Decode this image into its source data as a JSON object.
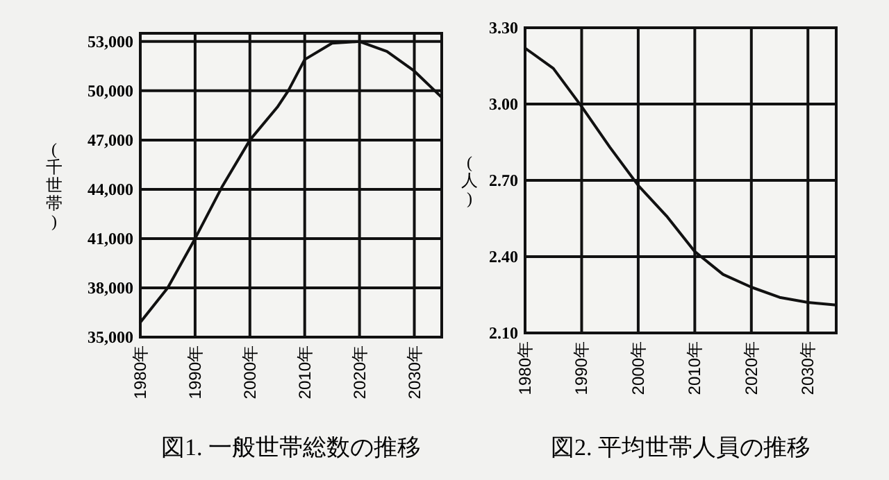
{
  "chart_data": [
    {
      "type": "line",
      "title": "図1.  一般世帯総数の推移",
      "ylabel": "(千世帯)",
      "x": [
        1980,
        1985,
        1990,
        1995,
        2000,
        2005,
        2007,
        2010,
        2015,
        2020,
        2025,
        2030,
        2035
      ],
      "values": [
        35900,
        38000,
        41000,
        44200,
        47000,
        49000,
        50000,
        51900,
        52900,
        53000,
        52400,
        51200,
        49600
      ],
      "xlim": [
        1980,
        2035
      ],
      "ylim": [
        35000,
        53500
      ],
      "xticks": [
        {
          "value": 1980,
          "label": "1980年"
        },
        {
          "value": 1990,
          "label": "1990年"
        },
        {
          "value": 2000,
          "label": "2000年"
        },
        {
          "value": 2010,
          "label": "2010年"
        },
        {
          "value": 2020,
          "label": "2020年"
        },
        {
          "value": 2030,
          "label": "2030年"
        }
      ],
      "yticks": [
        {
          "value": 35000,
          "label": "35,000"
        },
        {
          "value": 38000,
          "label": "38,000"
        },
        {
          "value": 41000,
          "label": "41,000"
        },
        {
          "value": 44000,
          "label": "44,000"
        },
        {
          "value": 47000,
          "label": "47,000"
        },
        {
          "value": 50000,
          "label": "50,000"
        },
        {
          "value": 53000,
          "label": "53,000"
        }
      ],
      "grid": true
    },
    {
      "type": "line",
      "title": "図2.  平均世帯人員の推移",
      "ylabel": "(人)",
      "x": [
        1980,
        1985,
        1990,
        1995,
        2000,
        2005,
        2010,
        2015,
        2020,
        2025,
        2030,
        2035
      ],
      "values": [
        3.22,
        3.14,
        2.99,
        2.83,
        2.68,
        2.56,
        2.42,
        2.33,
        2.28,
        2.24,
        2.22,
        2.21
      ],
      "xlim": [
        1980,
        2035
      ],
      "ylim": [
        2.1,
        3.3
      ],
      "xticks": [
        {
          "value": 1980,
          "label": "1980年"
        },
        {
          "value": 1990,
          "label": "1990年"
        },
        {
          "value": 2000,
          "label": "2000年"
        },
        {
          "value": 2010,
          "label": "2010年"
        },
        {
          "value": 2020,
          "label": "2020年"
        },
        {
          "value": 2030,
          "label": "2030年"
        }
      ],
      "yticks": [
        {
          "value": 2.1,
          "label": "2.10"
        },
        {
          "value": 2.4,
          "label": "2.40"
        },
        {
          "value": 2.7,
          "label": "2.70"
        },
        {
          "value": 3.0,
          "label": "3.00"
        },
        {
          "value": 3.3,
          "label": "3.30"
        }
      ],
      "grid": true
    }
  ]
}
